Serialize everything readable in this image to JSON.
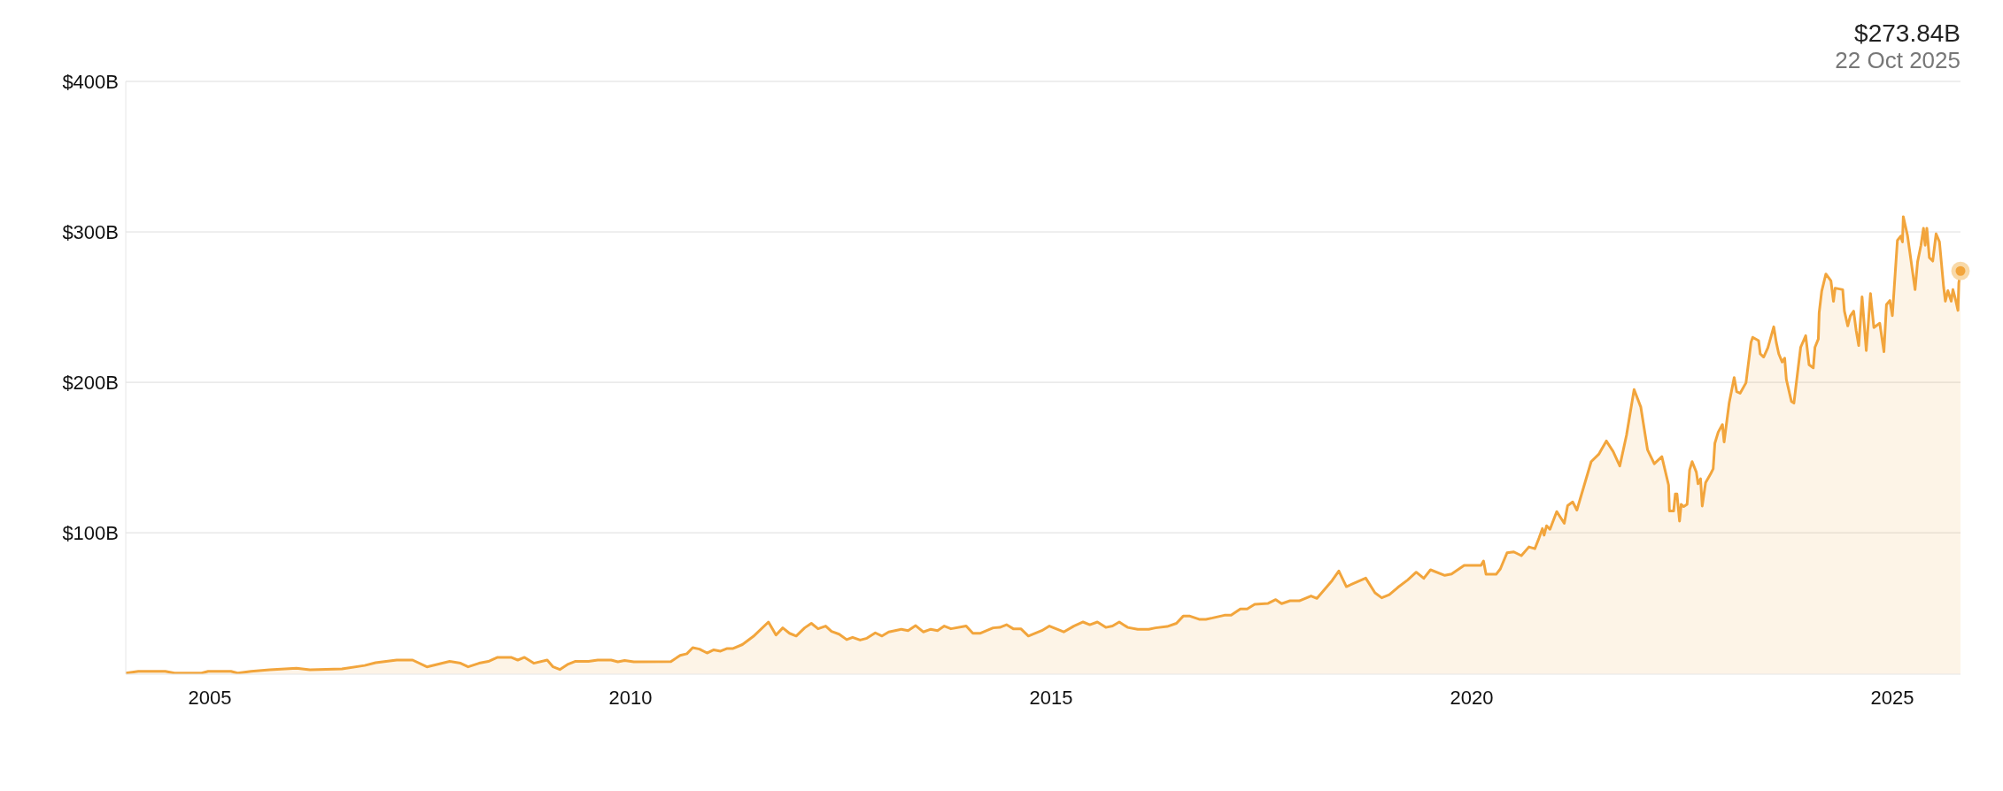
{
  "chart_data": {
    "type": "area",
    "color": "#f2a53c",
    "x": [
      2004.0,
      2004.15,
      2004.47,
      2004.58,
      2004.9,
      2004.98,
      2005.25,
      2005.33,
      2005.49,
      2005.71,
      2006.03,
      2006.19,
      2006.57,
      2006.84,
      2006.97,
      2007.22,
      2007.41,
      2007.58,
      2007.85,
      2007.98,
      2008.07,
      2008.2,
      2008.31,
      2008.42,
      2008.58,
      2008.66,
      2008.74,
      2008.85,
      2009.01,
      2009.08,
      2009.16,
      2009.26,
      2009.34,
      2009.5,
      2009.61,
      2009.77,
      2009.85,
      2009.93,
      2010.04,
      2010.48,
      2010.59,
      2010.67,
      2010.74,
      2010.82,
      2010.91,
      2010.99,
      2011.07,
      2011.15,
      2011.22,
      2011.33,
      2011.46,
      2011.64,
      2011.73,
      2011.81,
      2011.89,
      2011.97,
      2012.07,
      2012.15,
      2012.23,
      2012.32,
      2012.39,
      2012.48,
      2012.57,
      2012.64,
      2012.73,
      2012.81,
      2012.91,
      2012.99,
      2013.07,
      2013.22,
      2013.3,
      2013.39,
      2013.48,
      2013.57,
      2013.65,
      2013.73,
      2013.81,
      2013.99,
      2014.07,
      2014.16,
      2014.31,
      2014.39,
      2014.47,
      2014.55,
      2014.64,
      2014.73,
      2014.89,
      2014.98,
      2015.15,
      2015.27,
      2015.38,
      2015.46,
      2015.55,
      2015.65,
      2015.73,
      2015.81,
      2015.91,
      2016.03,
      2016.16,
      2016.24,
      2016.38,
      2016.49,
      2016.57,
      2016.65,
      2016.76,
      2016.84,
      2016.92,
      2017.06,
      2017.14,
      2017.25,
      2017.33,
      2017.42,
      2017.58,
      2017.67,
      2017.74,
      2017.84,
      2017.95,
      2018.09,
      2018.16,
      2018.34,
      2018.42,
      2018.51,
      2018.74,
      2018.85,
      2018.93,
      2019.02,
      2019.12,
      2019.24,
      2019.34,
      2019.43,
      2019.51,
      2019.68,
      2019.76,
      2019.91,
      2020.11,
      2020.14,
      2020.17,
      2020.29,
      2020.34,
      2020.42,
      2020.5,
      2020.59,
      2020.68,
      2020.75,
      2020.8,
      2020.84,
      2020.86,
      2020.89,
      2020.93,
      2021.01,
      2021.1,
      2021.14,
      2021.2,
      2021.25,
      2021.42,
      2021.51,
      2021.6,
      2021.68,
      2021.76,
      2021.84,
      2021.93,
      2022.01,
      2022.09,
      2022.17,
      2022.26,
      2022.34,
      2022.35,
      2022.4,
      2022.42,
      2022.44,
      2022.47,
      2022.49,
      2022.52,
      2022.56,
      2022.59,
      2022.62,
      2022.67,
      2022.69,
      2022.72,
      2022.74,
      2022.78,
      2022.84,
      2022.87,
      2022.89,
      2022.93,
      2022.98,
      2023.0,
      2023.06,
      2023.12,
      2023.15,
      2023.19,
      2023.26,
      2023.32,
      2023.34,
      2023.41,
      2023.43,
      2023.47,
      2023.52,
      2023.59,
      2023.62,
      2023.65,
      2023.69,
      2023.72,
      2023.74,
      2023.8,
      2023.83,
      2023.87,
      2023.91,
      2023.97,
      2024.01,
      2024.06,
      2024.08,
      2024.12,
      2024.13,
      2024.16,
      2024.21,
      2024.27,
      2024.3,
      2024.32,
      2024.41,
      2024.43,
      2024.47,
      2024.5,
      2024.54,
      2024.57,
      2024.6,
      2024.64,
      2024.69,
      2024.74,
      2024.78,
      2024.85,
      2024.9,
      2024.93,
      2024.97,
      2025.0,
      2025.06,
      2025.1,
      2025.12,
      2025.13,
      2025.18,
      2025.21,
      2025.27,
      2025.3,
      2025.34,
      2025.37,
      2025.39,
      2025.41,
      2025.44,
      2025.48,
      2025.52,
      2025.56,
      2025.61,
      2025.63,
      2025.66,
      2025.7,
      2025.72,
      2025.75,
      2025.78,
      2025.79,
      2025.81
    ],
    "values": [
      6.7,
      7.9,
      7.9,
      6.7,
      6.7,
      7.9,
      7.9,
      6.7,
      7.9,
      9,
      10,
      9,
      9.5,
      11.8,
      13.6,
      15.4,
      15.4,
      10.9,
      14.5,
      13.3,
      10.9,
      13.3,
      14.5,
      17.2,
      17.2,
      15.4,
      17.2,
      13.3,
      15.4,
      10.9,
      9.1,
      12.7,
      14.5,
      14.5,
      15.4,
      15.4,
      14.2,
      15.1,
      14.2,
      14.4,
      18.5,
      19.6,
      23.6,
      22.7,
      20.1,
      22.2,
      21.3,
      23.1,
      23.1,
      25.7,
      31.1,
      40.7,
      32,
      36.8,
      33.2,
      31.4,
      36.8,
      39.8,
      36.2,
      38,
      34.4,
      32.6,
      29,
      30.5,
      28.7,
      29.9,
      33.5,
      31.4,
      34.1,
      35.9,
      35,
      38.3,
      34.1,
      35.9,
      35,
      38,
      36.2,
      38,
      33.2,
      33.2,
      36.8,
      37.1,
      38.9,
      36.2,
      36.2,
      31.4,
      35,
      38,
      34.1,
      38,
      40.7,
      38.9,
      40.7,
      37.1,
      38,
      40.7,
      37.1,
      35.9,
      35.9,
      36.8,
      37.7,
      39.8,
      44.6,
      44.6,
      42.5,
      42.5,
      43.4,
      45.2,
      45.2,
      49.4,
      49.4,
      52.5,
      53.1,
      55.6,
      52.9,
      54.8,
      54.8,
      58,
      56.4,
      68.2,
      74.6,
      64.2,
      69.9,
      60.1,
      56.8,
      58.8,
      63.6,
      68.7,
      73.8,
      69.7,
      75.4,
      71.7,
      72.6,
      78.3,
      78.3,
      81.2,
      72.4,
      72.4,
      76,
      86.7,
      87.3,
      84.8,
      90.6,
      89.4,
      96.5,
      102.8,
      98.4,
      104.7,
      102.3,
      114.1,
      106.3,
      118,
      120.5,
      115.1,
      147.3,
      152.2,
      161,
      154.1,
      144.4,
      164.9,
      195.2,
      183.5,
      155.1,
      145.9,
      150.6,
      131.7,
      114.5,
      114.5,
      125.8,
      125.8,
      107.8,
      118.9,
      117.4,
      118.9,
      141.8,
      147.3,
      140.3,
      132.6,
      135.9,
      117.8,
      133.3,
      139.2,
      142.5,
      159.5,
      166.9,
      172,
      160.4,
      186.2,
      203.2,
      193.8,
      192.7,
      199.7,
      226.6,
      229.9,
      227.7,
      218.9,
      216.8,
      222.9,
      236.9,
      226.6,
      218.9,
      213.5,
      216.1,
      201.9,
      187.3,
      186.2,
      204.8,
      223.3,
      231,
      211.7,
      209.6,
      223.3,
      228.8,
      246.3,
      260.5,
      272,
      267.4,
      253.9,
      262.6,
      261.6,
      247.3,
      237.5,
      244.1,
      247.3,
      234.3,
      224.4,
      256.8,
      221.1,
      259,
      236.4,
      239.3,
      220.4,
      251.7,
      254.4,
      244.3,
      294.3,
      297.2,
      293.3,
      310.1,
      297.6,
      285.6,
      261.6,
      280.1,
      291.1,
      302.4,
      291.1,
      302.4,
      282.8,
      280.6,
      298.7,
      293.3,
      263.1,
      253.9,
      260.9,
      253.9,
      261.6,
      255.3,
      247.8,
      266,
      274
    ],
    "xlim": [
      2004.0,
      2025.81
    ],
    "xticks": [
      2005,
      2010,
      2015,
      2020,
      2025
    ],
    "ylim": [
      6,
      400
    ],
    "yticks": [
      {
        "value": 100,
        "label": "$100B"
      },
      {
        "value": 200,
        "label": "$200B"
      },
      {
        "value": 300,
        "label": "$300B"
      },
      {
        "value": 400,
        "label": "$400B"
      }
    ],
    "grid": "y",
    "marker": "none",
    "line_style": "solid",
    "annotations": [
      "$273.84B",
      "22 Oct 2025"
    ]
  }
}
